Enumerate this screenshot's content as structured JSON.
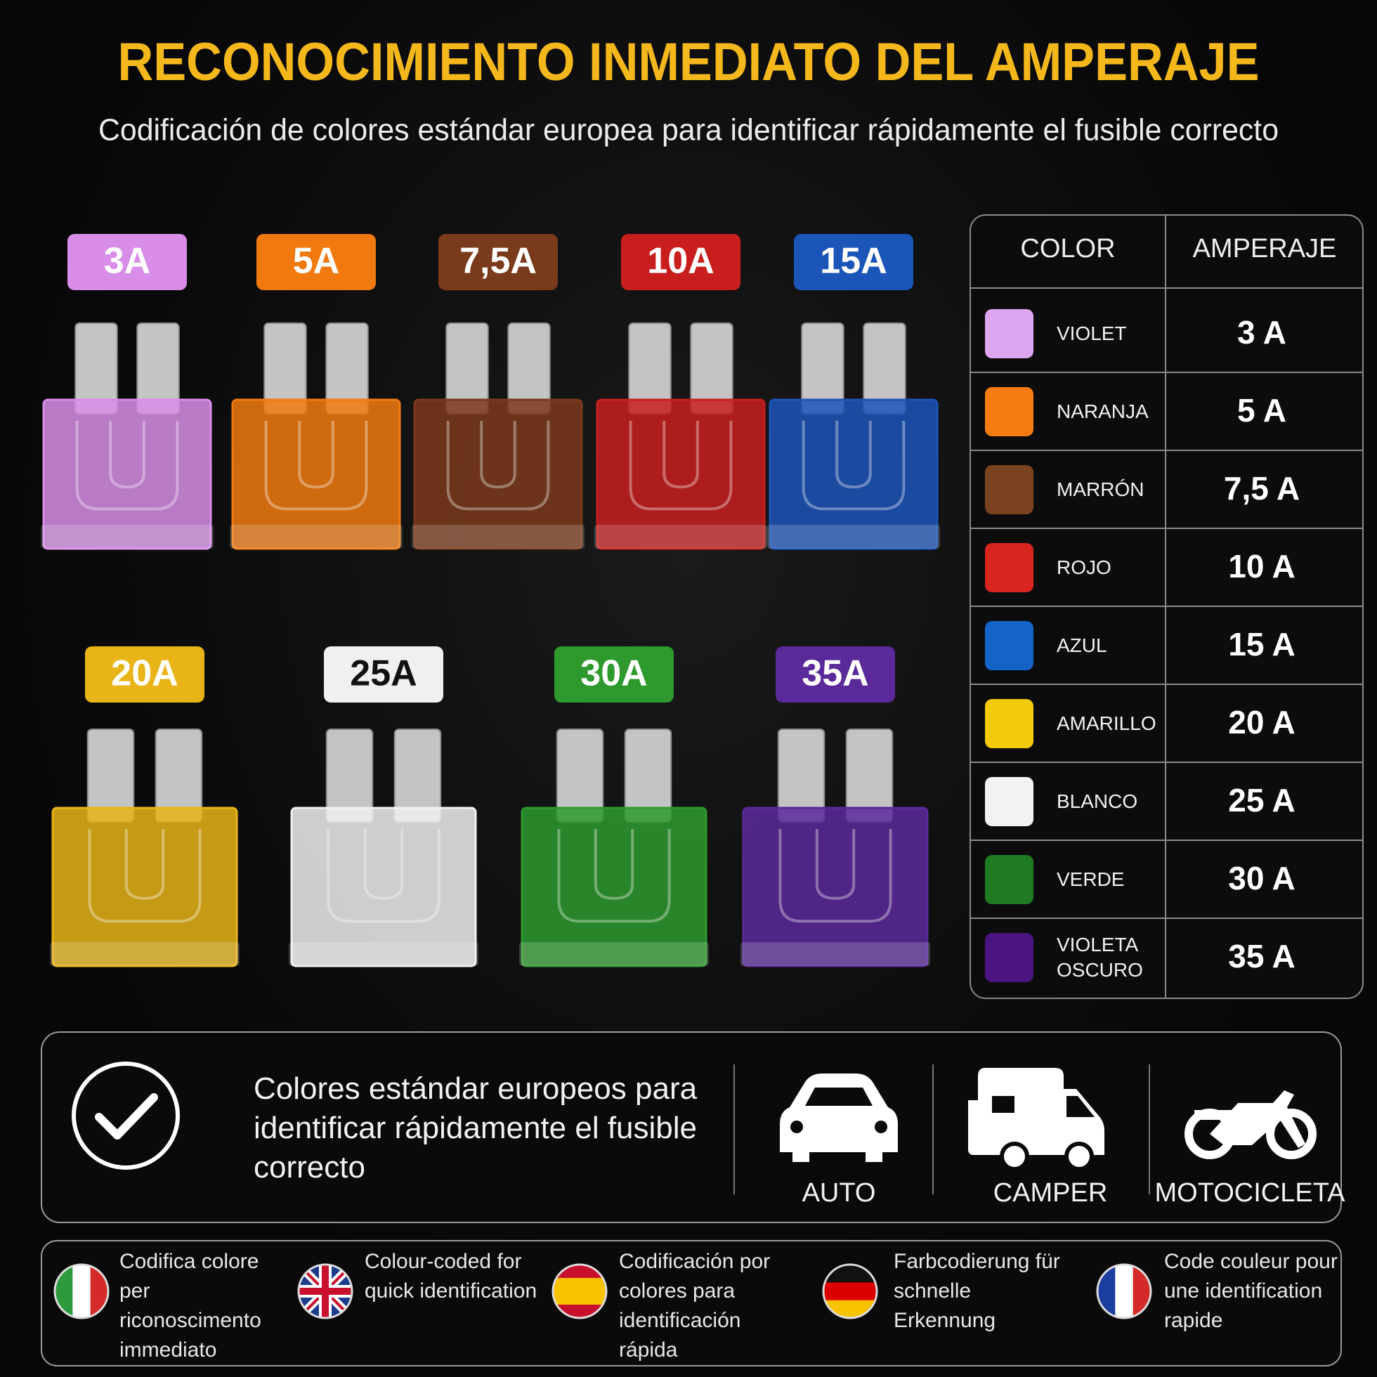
{
  "header": {
    "title": "RECONOCIMIENTO INMEDIATO DEL AMPERAJE",
    "subtitle": "Codificación de colores estándar europea para identificar rápidamente el fusible correcto"
  },
  "fuses": [
    {
      "label": "3A",
      "color": "#d88ee8"
    },
    {
      "label": "5A",
      "color": "#f07a10"
    },
    {
      "label": "7,5A",
      "color": "#7a3a1c"
    },
    {
      "label": "10A",
      "color": "#c81e1e"
    },
    {
      "label": "15A",
      "color": "#1c55b8"
    },
    {
      "label": "20A",
      "color": "#e8b418"
    },
    {
      "label": "25A",
      "color": "#f0f0f0"
    },
    {
      "label": "30A",
      "color": "#2e9a2e"
    },
    {
      "label": "35A",
      "color": "#5a2a9a"
    }
  ],
  "table": {
    "headers": [
      "COLOR",
      "AMPERAJE"
    ],
    "rows": [
      {
        "name": "VIOLET",
        "amperage": "3 A",
        "color": "#dda6f0"
      },
      {
        "name": "NARANJA",
        "amperage": "5 A",
        "color": "#f57c12"
      },
      {
        "name": "MARRÓN",
        "amperage": "7,5 A",
        "color": "#7a4320"
      },
      {
        "name": "ROJO",
        "amperage": "10 A",
        "color": "#d8261e"
      },
      {
        "name": "AZUL",
        "amperage": "15 A",
        "color": "#1464c8"
      },
      {
        "name": "AMARILLO",
        "amperage": "20 A",
        "color": "#f2cc0c"
      },
      {
        "name": "BLANCO",
        "amperage": "25 A",
        "color": "#f2f2f2"
      },
      {
        "name": "VERDE",
        "amperage": "30 A",
        "color": "#1f7a22"
      },
      {
        "name": "VIOLETA OSCURO",
        "amperage": "35 A",
        "color": "#4a1580"
      }
    ]
  },
  "banner": {
    "text": "Colores estándar europeos para identificar rápidamente el fusible correcto",
    "vehicles": [
      "AUTO",
      "CAMPER",
      "MOTOCICLETA"
    ]
  },
  "languages": [
    "Codifica colore per riconoscimento immediato",
    "Colour-coded for quick identification",
    "Codificación por colores para identificación rápida",
    "Farbcodierung für schnelle Erkennung",
    "Code couleur pour une identification rapide"
  ]
}
